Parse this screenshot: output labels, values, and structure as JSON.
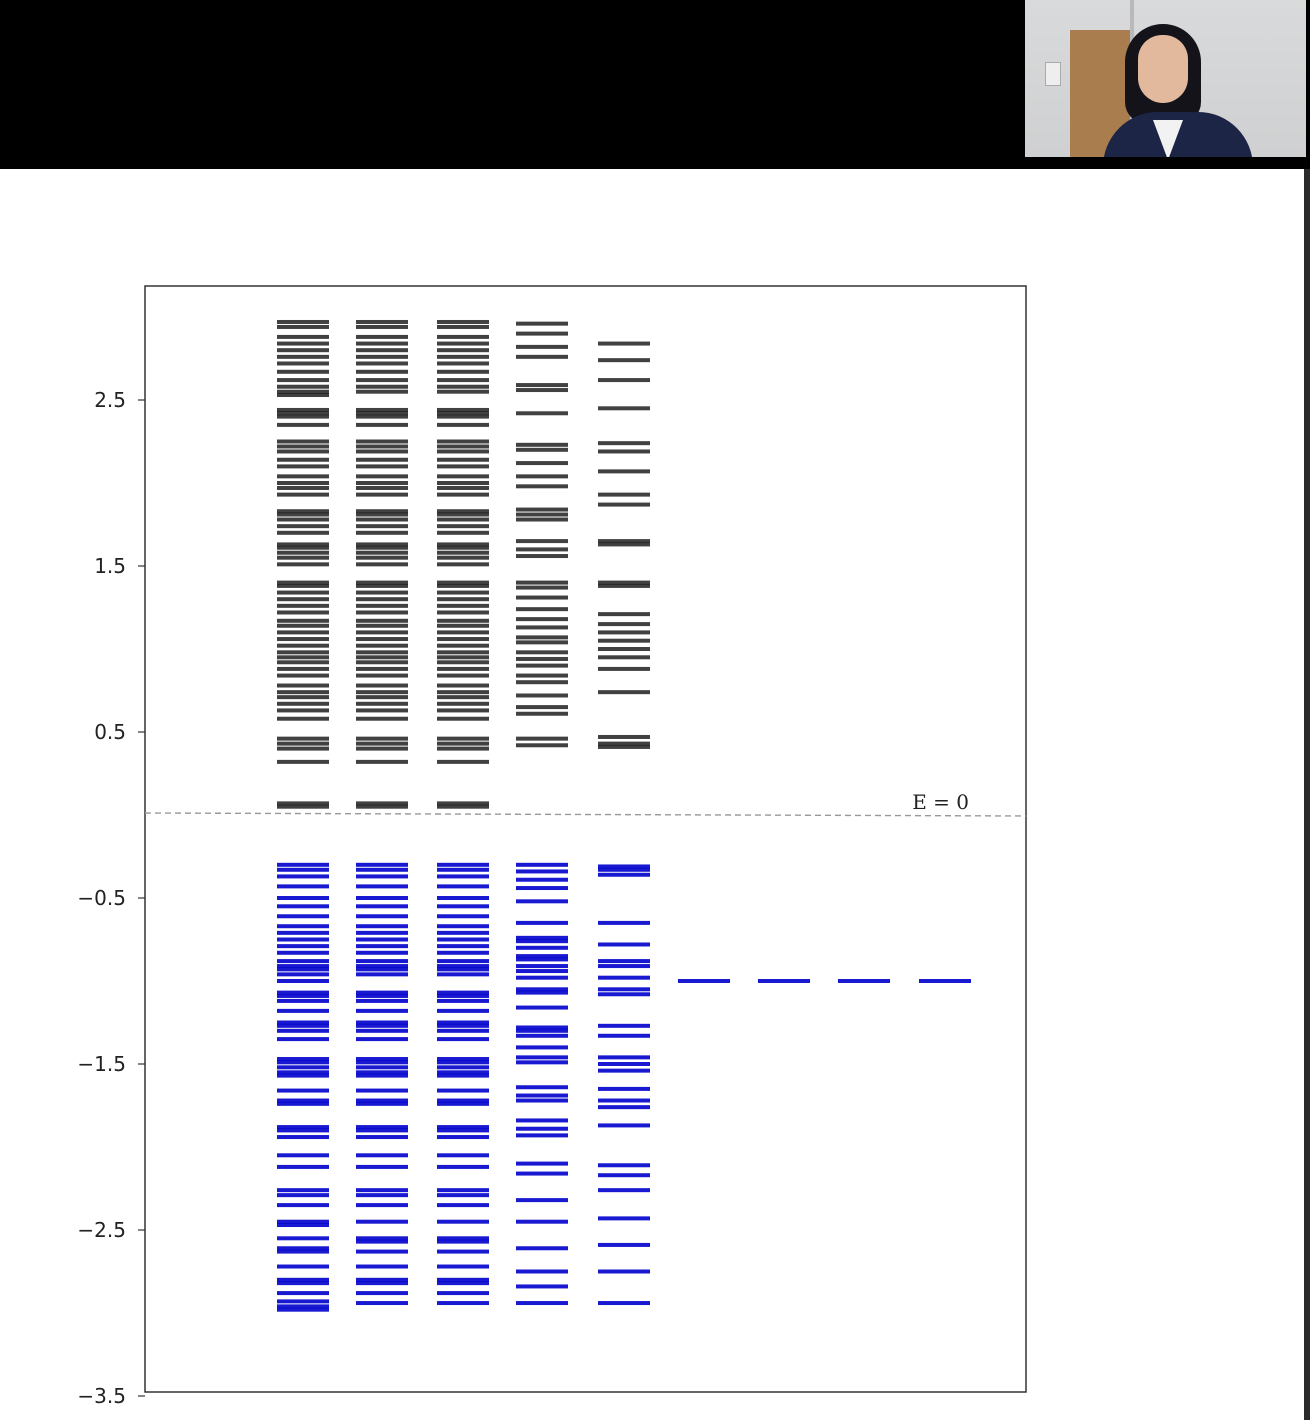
{
  "chart_data": {
    "type": "energy-level-spectrum",
    "y_ticks": [
      2.5,
      1.5,
      0.5,
      -0.5,
      -1.5,
      -2.5,
      -3.5
    ],
    "y_tick_labels": [
      "2.5",
      "1.5",
      "0.5",
      "−0.5",
      "−1.5",
      "−2.5",
      "−3.5"
    ],
    "ylim": [
      -3.5,
      3.0
    ],
    "annotation": "E = 0",
    "reference_line_y": 0,
    "colors": {
      "positive": "#111111",
      "negative": "#0000cc",
      "reference": "#999999",
      "axes": "#333333"
    },
    "columns": [
      {
        "positive": [
          2.97,
          2.94,
          2.88,
          2.84,
          2.8,
          2.76,
          2.72,
          2.67,
          2.62,
          2.58,
          2.55,
          2.53,
          2.44,
          2.42,
          2.4,
          2.35,
          2.25,
          2.22,
          2.19,
          2.14,
          2.1,
          2.04,
          2.0,
          1.97,
          1.93,
          1.83,
          1.81,
          1.78,
          1.74,
          1.7,
          1.63,
          1.61,
          1.58,
          1.55,
          1.51,
          1.4,
          1.38,
          1.34,
          1.3,
          1.26,
          1.22,
          1.17,
          1.14,
          1.1,
          1.06,
          1.02,
          0.98,
          0.95,
          0.92,
          0.88,
          0.84,
          0.78,
          0.74,
          0.71,
          0.67,
          0.63,
          0.58,
          0.46,
          0.43,
          0.4,
          0.32,
          0.07,
          0.05
        ],
        "negative": [
          -0.3,
          -0.33,
          -0.37,
          -0.43,
          -0.5,
          -0.55,
          -0.61,
          -0.67,
          -0.71,
          -0.75,
          -0.79,
          -0.83,
          -0.88,
          -0.91,
          -0.93,
          -0.96,
          -1.0,
          -1.07,
          -1.09,
          -1.12,
          -1.18,
          -1.25,
          -1.27,
          -1.3,
          -1.35,
          -1.47,
          -1.49,
          -1.52,
          -1.55,
          -1.57,
          -1.66,
          -1.72,
          -1.74,
          -1.88,
          -1.9,
          -1.94,
          -2.05,
          -2.12,
          -2.26,
          -2.29,
          -2.35,
          -2.45,
          -2.47,
          -2.55,
          -2.61,
          -2.63,
          -2.72,
          -2.8,
          -2.82,
          -2.88,
          -2.93,
          -2.96,
          -2.98
        ]
      },
      {
        "positive": [
          2.97,
          2.94,
          2.88,
          2.84,
          2.8,
          2.76,
          2.72,
          2.67,
          2.62,
          2.58,
          2.55,
          2.44,
          2.42,
          2.4,
          2.35,
          2.25,
          2.22,
          2.19,
          2.14,
          2.1,
          2.04,
          2.0,
          1.97,
          1.93,
          1.83,
          1.81,
          1.78,
          1.74,
          1.7,
          1.63,
          1.61,
          1.58,
          1.55,
          1.51,
          1.4,
          1.38,
          1.34,
          1.3,
          1.26,
          1.22,
          1.17,
          1.14,
          1.1,
          1.06,
          1.02,
          0.98,
          0.95,
          0.92,
          0.88,
          0.84,
          0.78,
          0.74,
          0.71,
          0.67,
          0.63,
          0.58,
          0.46,
          0.43,
          0.4,
          0.32,
          0.07,
          0.05
        ],
        "negative": [
          -0.3,
          -0.33,
          -0.37,
          -0.43,
          -0.5,
          -0.55,
          -0.61,
          -0.67,
          -0.71,
          -0.75,
          -0.79,
          -0.83,
          -0.88,
          -0.91,
          -0.93,
          -0.96,
          -1.07,
          -1.09,
          -1.12,
          -1.18,
          -1.25,
          -1.27,
          -1.3,
          -1.35,
          -1.47,
          -1.49,
          -1.52,
          -1.55,
          -1.57,
          -1.66,
          -1.72,
          -1.74,
          -1.88,
          -1.9,
          -1.94,
          -2.05,
          -2.12,
          -2.26,
          -2.29,
          -2.35,
          -2.45,
          -2.55,
          -2.57,
          -2.63,
          -2.72,
          -2.8,
          -2.82,
          -2.88,
          -2.94
        ]
      },
      {
        "positive": [
          2.97,
          2.94,
          2.88,
          2.84,
          2.8,
          2.76,
          2.72,
          2.67,
          2.62,
          2.58,
          2.55,
          2.44,
          2.42,
          2.4,
          2.35,
          2.25,
          2.22,
          2.19,
          2.14,
          2.1,
          2.04,
          2.0,
          1.97,
          1.93,
          1.83,
          1.81,
          1.78,
          1.74,
          1.7,
          1.63,
          1.61,
          1.58,
          1.55,
          1.51,
          1.4,
          1.38,
          1.34,
          1.3,
          1.26,
          1.22,
          1.17,
          1.14,
          1.1,
          1.06,
          1.02,
          0.98,
          0.95,
          0.92,
          0.88,
          0.84,
          0.78,
          0.74,
          0.71,
          0.67,
          0.63,
          0.58,
          0.46,
          0.43,
          0.4,
          0.32,
          0.07,
          0.05
        ],
        "negative": [
          -0.3,
          -0.33,
          -0.37,
          -0.43,
          -0.5,
          -0.55,
          -0.61,
          -0.67,
          -0.71,
          -0.75,
          -0.79,
          -0.83,
          -0.88,
          -0.91,
          -0.93,
          -0.96,
          -1.07,
          -1.09,
          -1.12,
          -1.18,
          -1.25,
          -1.27,
          -1.3,
          -1.35,
          -1.47,
          -1.49,
          -1.52,
          -1.55,
          -1.57,
          -1.66,
          -1.72,
          -1.74,
          -1.88,
          -1.9,
          -1.94,
          -2.05,
          -2.12,
          -2.26,
          -2.29,
          -2.35,
          -2.45,
          -2.55,
          -2.57,
          -2.63,
          -2.72,
          -2.8,
          -2.82,
          -2.88,
          -2.94
        ]
      },
      {
        "positive": [
          2.96,
          2.9,
          2.82,
          2.76,
          2.59,
          2.56,
          2.42,
          2.23,
          2.2,
          2.12,
          2.04,
          1.98,
          1.84,
          1.81,
          1.78,
          1.65,
          1.6,
          1.56,
          1.4,
          1.37,
          1.31,
          1.24,
          1.18,
          1.13,
          1.07,
          1.04,
          0.98,
          0.94,
          0.9,
          0.84,
          0.8,
          0.72,
          0.65,
          0.61,
          0.46,
          0.42
        ],
        "negative": [
          -0.3,
          -0.34,
          -0.39,
          -0.44,
          -0.52,
          -0.65,
          -0.74,
          -0.76,
          -0.8,
          -0.85,
          -0.87,
          -0.91,
          -0.94,
          -0.98,
          -1.05,
          -1.07,
          -1.16,
          -1.28,
          -1.3,
          -1.33,
          -1.4,
          -1.46,
          -1.49,
          -1.64,
          -1.69,
          -1.72,
          -1.84,
          -1.89,
          -1.93,
          -2.1,
          -2.16,
          -2.32,
          -2.45,
          -2.61,
          -2.75,
          -2.84,
          -2.94
        ]
      },
      {
        "positive": [
          2.84,
          2.74,
          2.62,
          2.45,
          2.24,
          2.19,
          2.07,
          1.93,
          1.87,
          1.65,
          1.63,
          1.4,
          1.38,
          1.21,
          1.15,
          1.1,
          1.05,
          1.0,
          0.95,
          0.88,
          0.74,
          0.47,
          0.43,
          0.41
        ],
        "negative": [
          -0.31,
          -0.33,
          -0.36,
          -0.65,
          -0.78,
          -0.88,
          -0.91,
          -0.98,
          -1.05,
          -1.08,
          -1.27,
          -1.33,
          -1.46,
          -1.5,
          -1.54,
          -1.65,
          -1.72,
          -1.76,
          -1.87,
          -2.11,
          -2.17,
          -2.26,
          -2.43,
          -2.59,
          -2.75,
          -2.94
        ]
      },
      {
        "positive": [],
        "negative": [
          -1.0
        ]
      },
      {
        "positive": [],
        "negative": [
          -1.0
        ]
      },
      {
        "positive": [],
        "negative": [
          -1.0
        ]
      },
      {
        "positive": [],
        "negative": [
          -1.0
        ]
      }
    ]
  }
}
